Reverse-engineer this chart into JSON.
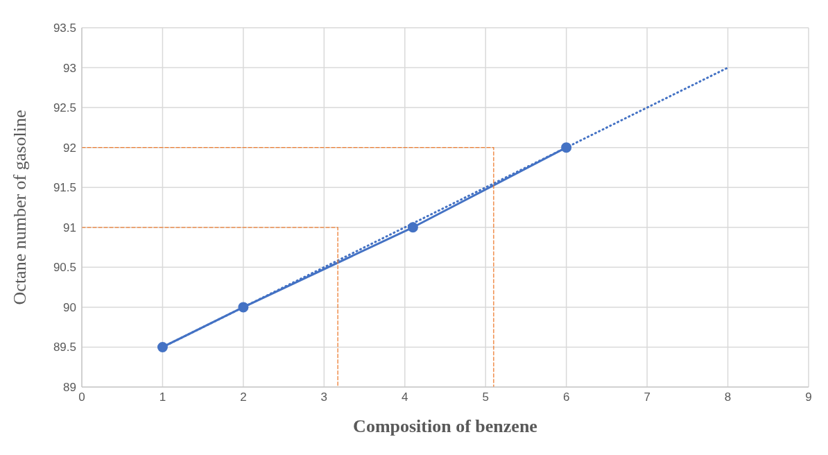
{
  "chart_data": {
    "type": "line",
    "xlabel": "Composition of benzene",
    "ylabel": "Octane number of gasoline",
    "xlim": [
      0,
      9
    ],
    "xticks": [
      0,
      1,
      2,
      3,
      4,
      5,
      6,
      7,
      8,
      9
    ],
    "ylim": [
      89,
      93.5
    ],
    "yticks": [
      89,
      89.5,
      90,
      90.5,
      91,
      91.5,
      92,
      92.5,
      93,
      93.5
    ],
    "grid": true,
    "series": [
      {
        "color": "#4472c4",
        "x": [
          1,
          2,
          4.1,
          6
        ],
        "values": [
          89.5,
          90,
          91,
          92
        ],
        "marker": "circle",
        "line_style": "solid"
      },
      {
        "color": "#4472c4",
        "x": [
          1,
          8
        ],
        "values": [
          89.5,
          93
        ],
        "marker": "none",
        "line_style": "dotted"
      },
      {
        "color": "#ed7d31",
        "x": [
          0,
          5.1,
          5.1
        ],
        "values": [
          92,
          92,
          89
        ],
        "marker": "none",
        "line_style": "dashed"
      },
      {
        "color": "#ed7d31",
        "x": [
          0,
          3.17,
          3.17
        ],
        "values": [
          91,
          91,
          89
        ],
        "marker": "none",
        "line_style": "dashed"
      }
    ]
  }
}
